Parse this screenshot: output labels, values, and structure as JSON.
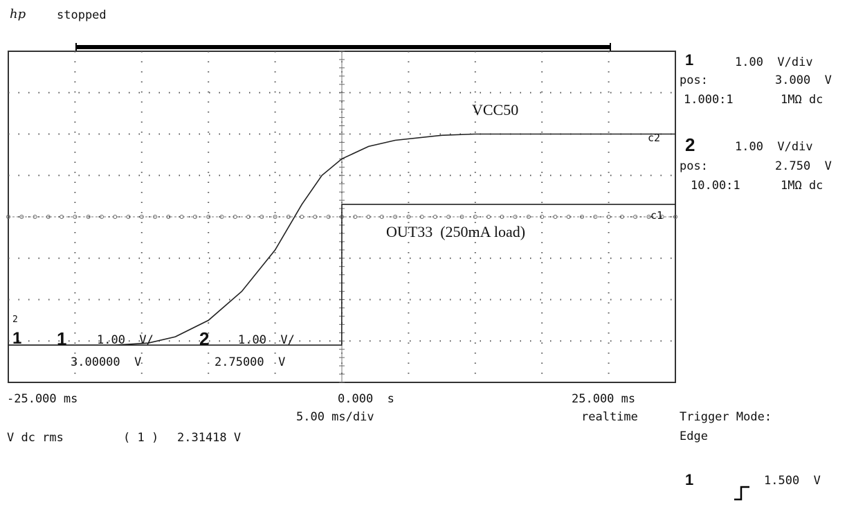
{
  "header": {
    "logo_text": "hp",
    "status": "stopped"
  },
  "channels": [
    {
      "number": "1",
      "scale": "1.00  V/div",
      "pos_label": "pos:",
      "pos_value": "3.000  V",
      "probe": "1.000:1",
      "coupling": "1MΩ dc"
    },
    {
      "number": "2",
      "scale": "1.00  V/div",
      "pos_label": "pos:",
      "pos_value": "2.750  V",
      "probe": "10.00:1",
      "coupling": "1MΩ dc"
    }
  ],
  "screen": {
    "labels": {
      "vcc": "VCC50",
      "out": "OUT33  (250mA load)",
      "c2": "c2",
      "c1": "c1"
    },
    "inscreen_readout": {
      "ch1_num": "1",
      "ch1_scale": "1.00  V/",
      "ch2_num": "2",
      "ch2_scale": "1.00  V/",
      "ch1_offset": "3.00000  V",
      "ch2_offset": "2.75000  V",
      "ground_marker_top": "2",
      "ground_marker_main": "1"
    }
  },
  "timebase": {
    "left": "-25.000 ms",
    "center": "0.000  s",
    "right": "25.000 ms",
    "per_div": "5.00 ms/div",
    "mode": "realtime"
  },
  "measurement": {
    "label": "V dc rms",
    "channel": "( 1 )",
    "value": "2.31418 V"
  },
  "trigger": {
    "title": "Trigger Mode:",
    "mode": "Edge",
    "source": "1",
    "level": "1.500  V"
  },
  "chart_data": {
    "type": "line",
    "title": "",
    "xlabel": "",
    "ylabel": "",
    "x_unit": "ms",
    "xlim": [
      -25,
      25
    ],
    "ylim": [
      -4,
      4
    ],
    "grid": true,
    "series": [
      {
        "name": "VCC50",
        "x": [
          -25,
          -17,
          -14.5,
          -12.5,
          -10,
          -7.5,
          -5,
          -3,
          -1.5,
          0,
          2,
          4,
          7.5,
          10,
          15,
          20,
          25
        ],
        "y": [
          -3.1,
          -3.1,
          -3.05,
          -2.9,
          -2.5,
          -1.8,
          -0.8,
          0.3,
          1.0,
          1.4,
          1.7,
          1.85,
          1.97,
          2.0,
          2.0,
          2.0,
          2.0
        ]
      },
      {
        "name": "OUT33  (250mA load)",
        "x": [
          -25,
          -0.01,
          0,
          25
        ],
        "y": [
          -3.1,
          -3.1,
          0.3,
          0.3
        ]
      }
    ]
  }
}
